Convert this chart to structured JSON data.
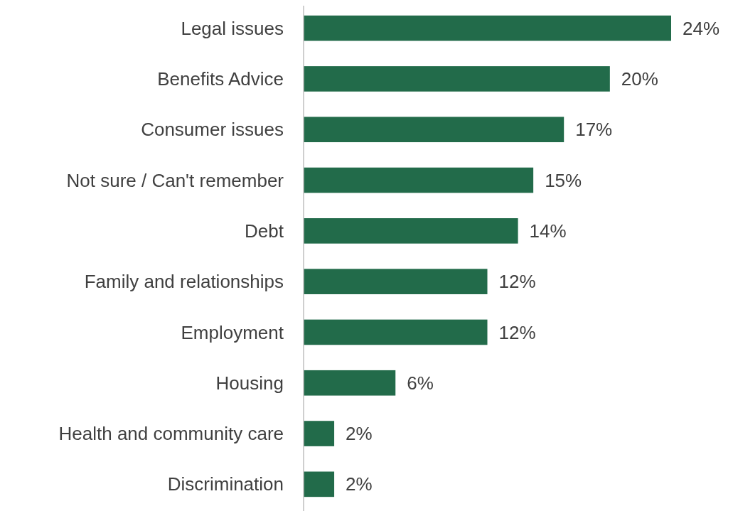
{
  "chart_data": {
    "type": "bar",
    "orientation": "horizontal",
    "categories": [
      "Legal issues",
      "Benefits Advice",
      "Consumer issues",
      "Not sure / Can't remember",
      "Debt",
      "Family and relationships",
      "Employment",
      "Housing",
      "Health and community care",
      "Discrimination"
    ],
    "values": [
      24,
      20,
      17,
      15,
      14,
      12,
      12,
      6,
      2,
      2
    ],
    "value_labels": [
      "24%",
      "20%",
      "17%",
      "15%",
      "14%",
      "12%",
      "12%",
      "6%",
      "2%",
      "2%"
    ],
    "color": "#226b4a"
  }
}
